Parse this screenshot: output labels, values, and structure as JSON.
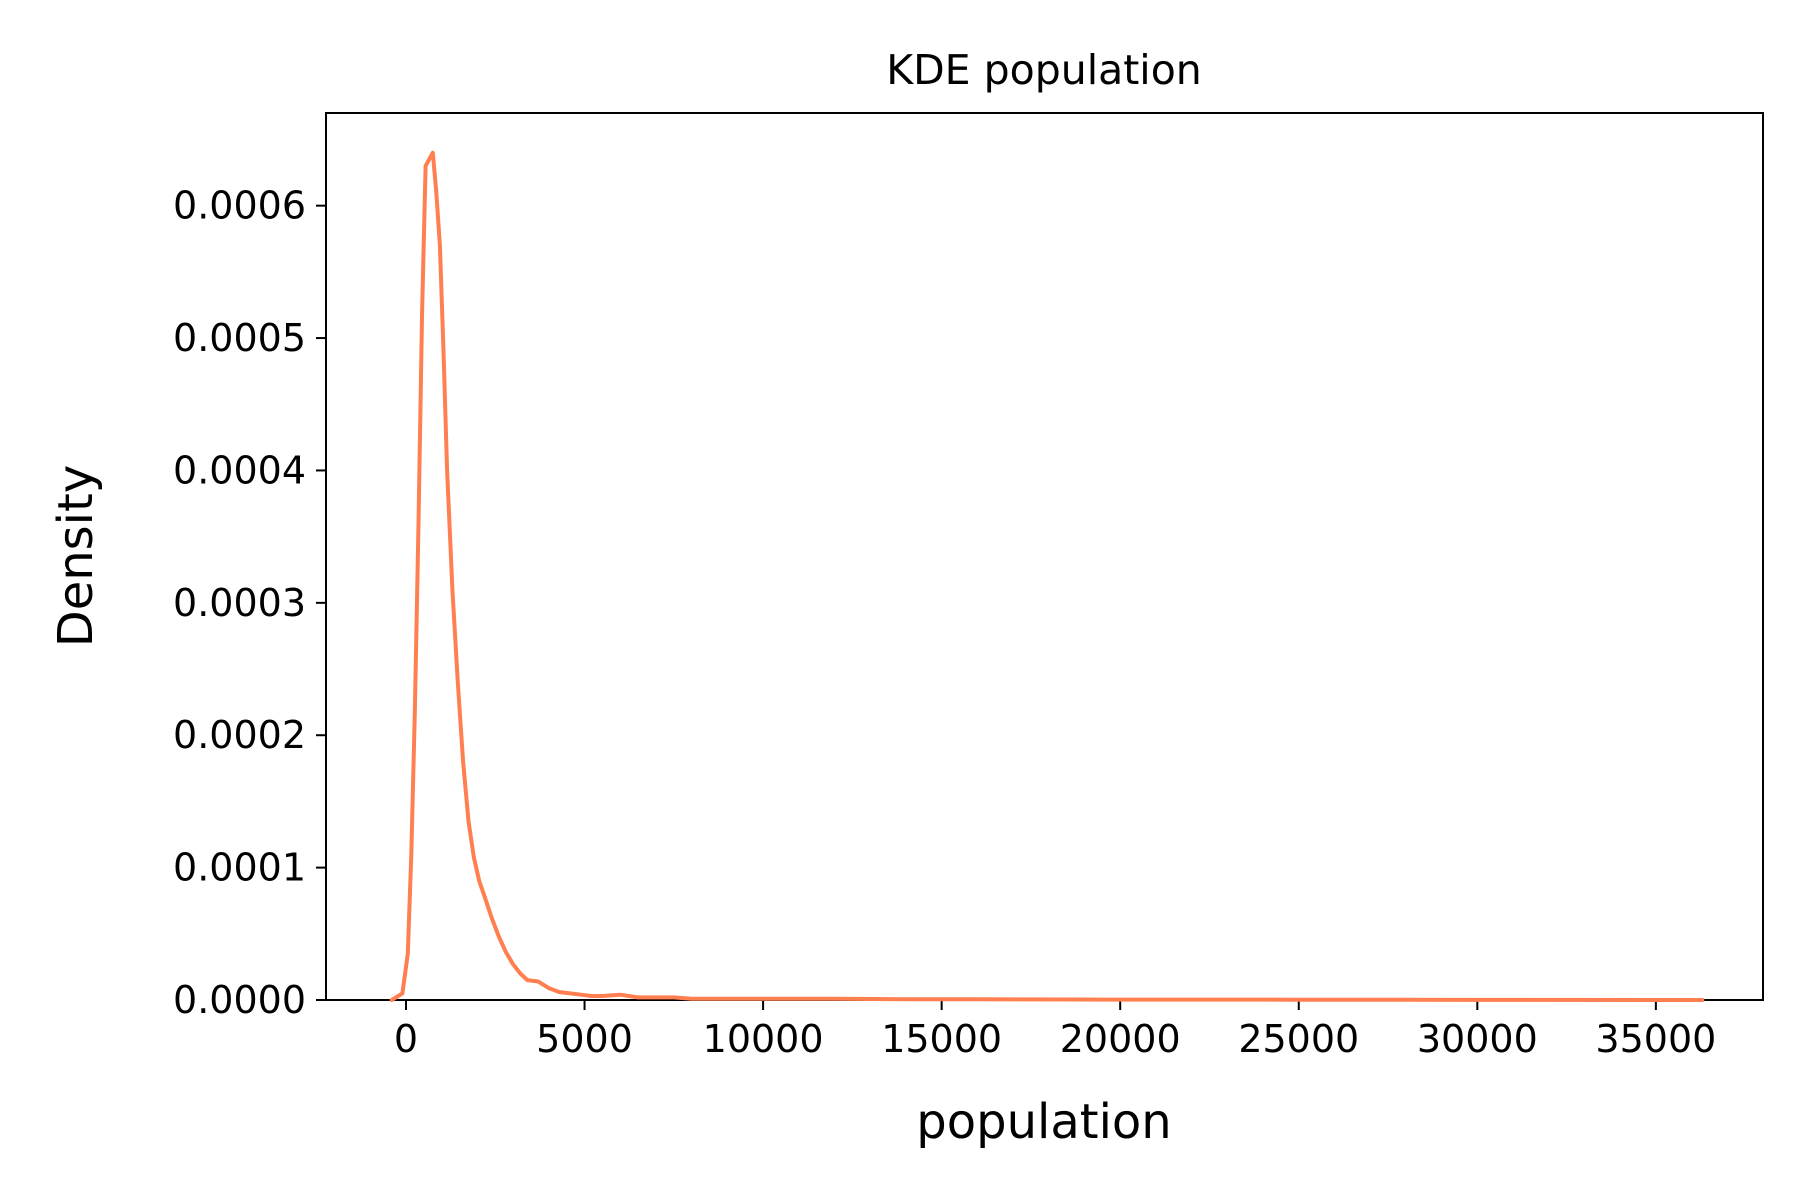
{
  "chart_data": {
    "type": "line",
    "title": "KDE population",
    "xlabel": "population",
    "ylabel": "Density",
    "xlim": [
      -2240,
      38000
    ],
    "ylim": [
      0,
      0.00067
    ],
    "xticks": [
      0,
      5000,
      10000,
      15000,
      20000,
      25000,
      30000,
      35000
    ],
    "xtick_labels": [
      "0",
      "5000",
      "10000",
      "15000",
      "20000",
      "25000",
      "30000",
      "35000"
    ],
    "yticks": [
      0,
      0.0001,
      0.0002,
      0.0003,
      0.0004,
      0.0005,
      0.0006
    ],
    "ytick_labels": [
      "0.0000",
      "0.0001",
      "0.0002",
      "0.0003",
      "0.0004",
      "0.0005",
      "0.0006"
    ],
    "grid": false,
    "series": [
      {
        "color": "#ff7f50",
        "x": [
          -400,
          -100,
          50,
          150,
          250,
          350,
          450,
          550,
          650,
          750,
          850,
          950,
          1050,
          1150,
          1300,
          1450,
          1600,
          1750,
          1900,
          2050,
          2200,
          2400,
          2600,
          2800,
          3000,
          3200,
          3400,
          3700,
          4000,
          4300,
          4600,
          4900,
          5200,
          5500,
          6000,
          6500,
          7000,
          7500,
          8000,
          9000,
          10000,
          11000,
          12000,
          14000,
          16000,
          20000,
          25000,
          30000,
          36300
        ],
        "y": [
          0,
          5e-06,
          3.5e-05,
          0.00011,
          0.00022,
          0.00036,
          0.00052,
          0.00063,
          0.000635,
          0.00064,
          0.00061,
          0.00057,
          0.00049,
          0.0004,
          0.00031,
          0.00024,
          0.00018,
          0.000135,
          0.000108,
          9e-05,
          7.8e-05,
          6.2e-05,
          4.8e-05,
          3.6e-05,
          2.7e-05,
          2e-05,
          1.5e-05,
          1.4e-05,
          9e-06,
          6e-06,
          5e-06,
          4e-06,
          3e-06,
          3e-06,
          4e-06,
          2e-06,
          2e-06,
          2e-06,
          1e-06,
          1e-06,
          1e-06,
          1e-06,
          1e-06,
          5e-07,
          5e-07,
          3e-07,
          2e-07,
          1e-07,
          0
        ]
      }
    ]
  }
}
